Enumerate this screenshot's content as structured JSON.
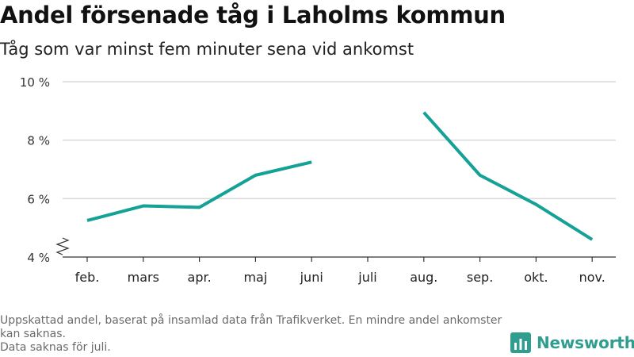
{
  "title": "Andel försenade tåg i Laholms kommun",
  "subtitle": "Tåg som var minst fem minuter sena vid ankomst",
  "footnote_lines": [
    "Uppskattad andel, baserat på insamlad data från Trafikverket. En mindre andel ankomster kan saknas.",
    "Data saknas för juli."
  ],
  "brand": {
    "name": "Newsworthy",
    "color": "#2f9e8f"
  },
  "chart_data": {
    "type": "line",
    "categories": [
      "feb.",
      "mars",
      "apr.",
      "maj",
      "juni",
      "juli",
      "aug.",
      "sep.",
      "okt.",
      "nov."
    ],
    "series": [
      {
        "values": [
          5.25,
          5.75,
          5.7,
          6.8,
          7.25,
          null,
          8.95,
          6.8,
          5.8,
          4.6
        ],
        "color": "#14a196"
      }
    ],
    "y_ticks": [
      4,
      6,
      8,
      10
    ],
    "y_tick_labels": [
      "4 %",
      "6 %",
      "8 %",
      "10 %"
    ],
    "ylim": [
      4,
      10
    ],
    "ylabel": "",
    "xlabel": "",
    "grid": true,
    "y_axis_break": true
  }
}
